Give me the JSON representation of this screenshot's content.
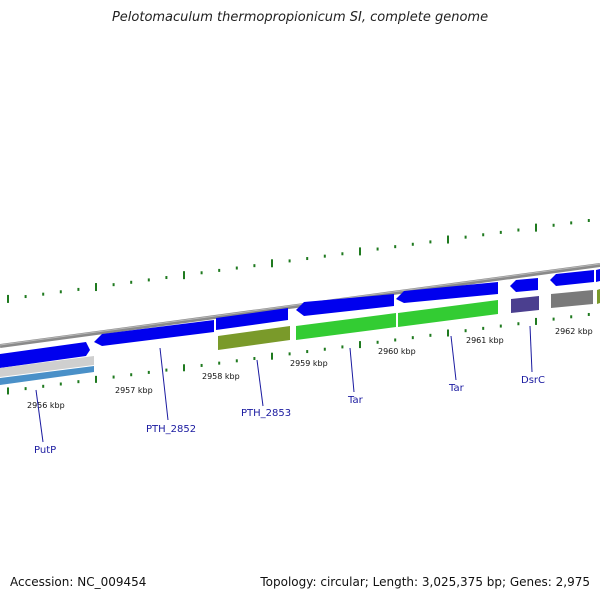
{
  "title": "Pelotomaculum thermopropionicum SI, complete genome",
  "footer": {
    "accession": "Accession: NC_009454",
    "stats": "Topology: circular; Length: 3,025,375 bp; Genes: 2,975"
  },
  "colors": {
    "backbone": "#8a8a8a",
    "cds": "#0000ee",
    "tick": "#1f7a1f",
    "label": "#1a1aa0",
    "olive": "#7a9a2a",
    "green": "#33cc33",
    "purple": "#4b3f8f",
    "gray": "#7a7a7a",
    "lightblue": "#4a90c8",
    "lightgray": "#cfcfcf"
  },
  "kbp_labels": [
    "2956 kbp",
    "2957 kbp",
    "2958 kbp",
    "2959 kbp",
    "2960 kbp",
    "2961 kbp",
    "2962 kbp"
  ],
  "gene_labels": [
    "PutP",
    "PTH_2852",
    "PTH_2853",
    "Tar",
    "Tar",
    "DsrC"
  ]
}
